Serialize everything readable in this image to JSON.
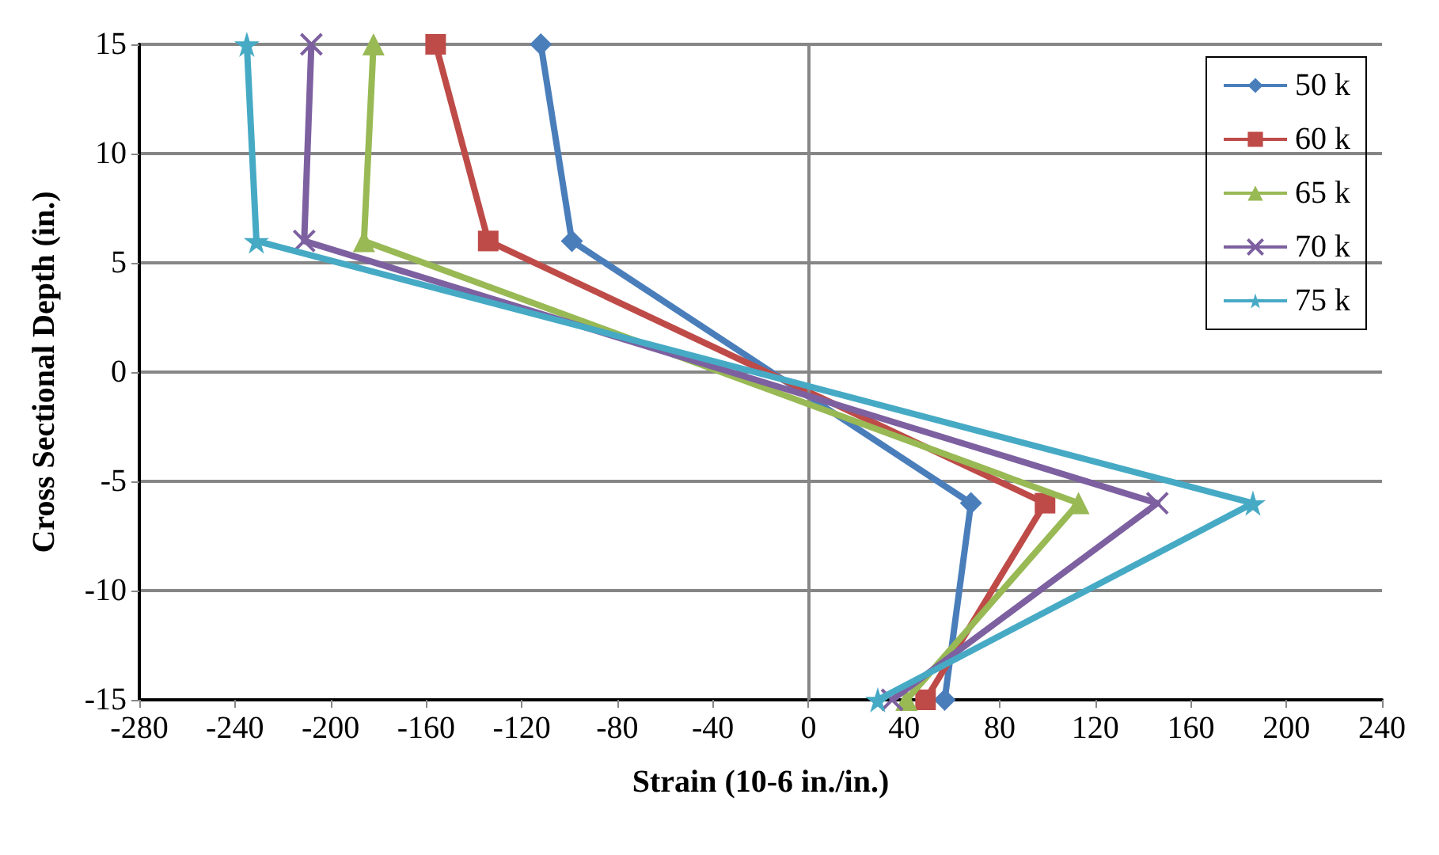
{
  "chart_data": {
    "type": "line",
    "xlabel": "Strain (10-6 in./in.)",
    "ylabel": "Cross Sectional Depth (in.)",
    "xlim": [
      -280,
      240
    ],
    "xticks": [
      -280,
      -240,
      -200,
      -160,
      -120,
      -80,
      -40,
      0,
      40,
      80,
      120,
      160,
      200,
      240
    ],
    "ylim": [
      -15,
      15
    ],
    "yticks": [
      -15,
      -10,
      -5,
      0,
      5,
      10,
      15
    ],
    "grid": "y",
    "legend": "top right",
    "ref_lines": [
      {
        "axis": "x",
        "value": 0,
        "color": "#868686"
      }
    ],
    "series": [
      {
        "name": "50 k",
        "color": "#4a7ebb",
        "marker": "diamond",
        "x": [
          -112,
          -99,
          68,
          57
        ],
        "values": [
          15,
          6,
          -6,
          -15
        ]
      },
      {
        "name": "60 k",
        "color": "#be4b48",
        "marker": "square",
        "x": [
          -156,
          -134,
          99,
          49
        ],
        "values": [
          15,
          6,
          -6,
          -15
        ]
      },
      {
        "name": "65 k",
        "color": "#98b954",
        "marker": "triangle",
        "x": [
          -182,
          -186,
          113,
          41
        ],
        "values": [
          15,
          6,
          -6,
          -15
        ]
      },
      {
        "name": "70 k",
        "color": "#7d60a0",
        "marker": "cross",
        "x": [
          -208,
          -211,
          146,
          35
        ],
        "values": [
          15,
          6,
          -6,
          -15
        ]
      },
      {
        "name": "75 k",
        "color": "#46aac5",
        "marker": "star",
        "x": [
          -235,
          -231,
          186,
          29
        ],
        "values": [
          15,
          6,
          -6,
          -15
        ]
      }
    ]
  }
}
